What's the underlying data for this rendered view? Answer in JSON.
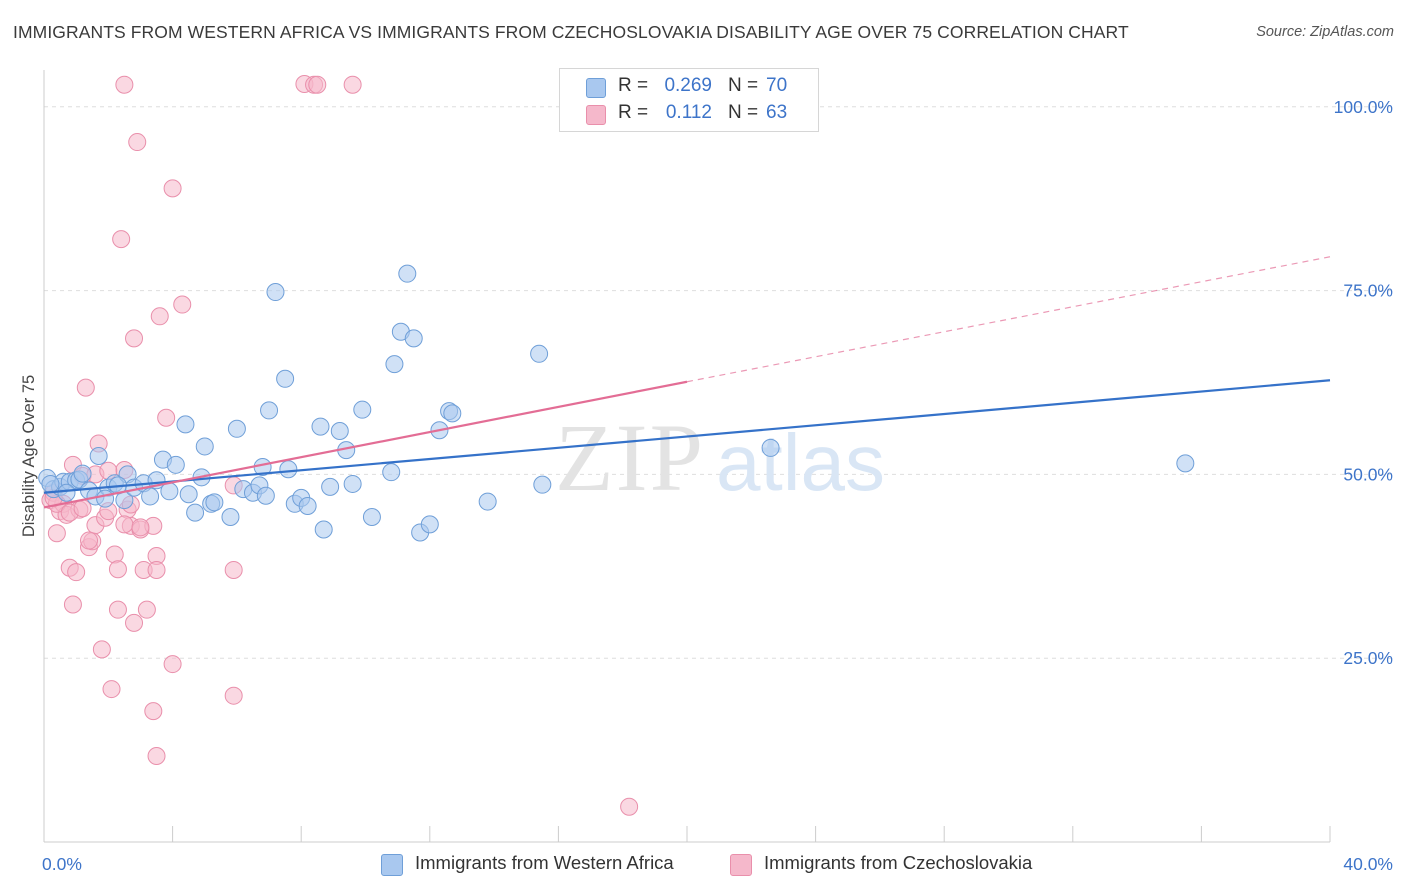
{
  "title": "IMMIGRANTS FROM WESTERN AFRICA VS IMMIGRANTS FROM CZECHOSLOVAKIA DISABILITY AGE OVER 75 CORRELATION CHART",
  "source": "Source: ZipAtlas.com",
  "watermark": {
    "zip": "ZIP",
    "atlas": "atlas"
  },
  "legend": {
    "r_label": "R =",
    "n_label": "N =",
    "rows": [
      {
        "r": "0.269",
        "n": "70",
        "color": "#a9c8ef"
      },
      {
        "r": "0.112",
        "n": "63",
        "color": "#f5b8cb"
      }
    ]
  },
  "colors": {
    "blue_fill": "#a9c8ef",
    "blue_stroke": "#6f9fd8",
    "blue_line": "#3572c9",
    "pink_fill": "#f5b8cb",
    "pink_stroke": "#e98fab",
    "pink_line": "#e36d95",
    "tick_text": "#3d74c9",
    "grid": "#dedede"
  },
  "chart_data": {
    "type": "scatter",
    "title": "IMMIGRANTS FROM WESTERN AFRICA VS IMMIGRANTS FROM CZECHOSLOVAKIA DISABILITY AGE OVER 75 CORRELATION CHART",
    "xlabel": "",
    "ylabel": "Disability Age Over 75",
    "xlim": [
      0,
      40
    ],
    "ylim": [
      0,
      105
    ],
    "x_tick_labels": [
      "0.0%",
      "40.0%"
    ],
    "y_ticks": [
      25,
      50,
      75,
      100
    ],
    "y_tick_labels": [
      "25.0%",
      "50.0%",
      "75.0%",
      "100.0%"
    ],
    "grid": "horizontal dashed",
    "legend_position": "top-center",
    "series": [
      {
        "name": "Immigrants from Western Africa",
        "color": "#a9c8ef",
        "R": 0.269,
        "N": 70,
        "trend": {
          "x": [
            0,
            40
          ],
          "y": [
            47.5,
            62.8
          ],
          "style": "solid"
        },
        "points": [
          [
            0.1,
            49.5
          ],
          [
            0.3,
            48.0
          ],
          [
            0.5,
            48.3
          ],
          [
            0.6,
            49.0
          ],
          [
            0.8,
            49.0
          ],
          [
            1.0,
            49.2
          ],
          [
            1.1,
            49.3
          ],
          [
            1.4,
            47.8
          ],
          [
            1.6,
            47.0
          ],
          [
            1.7,
            52.5
          ],
          [
            2.0,
            48.2
          ],
          [
            2.2,
            48.8
          ],
          [
            2.5,
            46.5
          ],
          [
            2.6,
            50.0
          ],
          [
            2.8,
            48.2
          ],
          [
            3.1,
            48.8
          ],
          [
            3.3,
            47.0
          ],
          [
            3.5,
            49.2
          ],
          [
            3.7,
            52.0
          ],
          [
            3.9,
            47.7
          ],
          [
            4.1,
            51.3
          ],
          [
            4.4,
            56.8
          ],
          [
            4.5,
            47.3
          ],
          [
            4.7,
            44.8
          ],
          [
            5.0,
            53.8
          ],
          [
            5.2,
            46.0
          ],
          [
            5.3,
            46.2
          ],
          [
            5.8,
            44.2
          ],
          [
            6.0,
            56.2
          ],
          [
            6.2,
            48.0
          ],
          [
            6.5,
            47.5
          ],
          [
            6.7,
            48.5
          ],
          [
            6.8,
            51.0
          ],
          [
            7.0,
            58.7
          ],
          [
            7.2,
            74.8
          ],
          [
            7.5,
            63.0
          ],
          [
            7.6,
            50.7
          ],
          [
            7.8,
            46.0
          ],
          [
            8.0,
            46.8
          ],
          [
            8.2,
            45.7
          ],
          [
            8.6,
            56.5
          ],
          [
            8.7,
            42.5
          ],
          [
            8.9,
            48.3
          ],
          [
            9.2,
            55.9
          ],
          [
            9.4,
            53.3
          ],
          [
            9.6,
            48.7
          ],
          [
            9.9,
            58.8
          ],
          [
            10.2,
            44.2
          ],
          [
            10.8,
            50.3
          ],
          [
            10.9,
            65.0
          ],
          [
            11.1,
            69.4
          ],
          [
            11.3,
            77.3
          ],
          [
            11.5,
            68.5
          ],
          [
            11.7,
            42.1
          ],
          [
            12.0,
            43.2
          ],
          [
            12.3,
            56.0
          ],
          [
            12.6,
            58.6
          ],
          [
            12.7,
            58.3
          ],
          [
            13.8,
            46.3
          ],
          [
            15.5,
            48.6
          ],
          [
            15.4,
            66.4
          ],
          [
            22.6,
            53.6
          ],
          [
            35.5,
            51.5
          ],
          [
            0.2,
            48.7
          ],
          [
            0.7,
            47.5
          ],
          [
            1.2,
            50.1
          ],
          [
            2.3,
            48.5
          ],
          [
            4.9,
            49.6
          ],
          [
            6.9,
            47.1
          ],
          [
            1.9,
            46.7
          ]
        ]
      },
      {
        "name": "Immigrants from Czechoslovakia",
        "color": "#f5b8cb",
        "R": 0.112,
        "N": 63,
        "trend": {
          "x": [
            0,
            20,
            40
          ],
          "y": [
            45.5,
            62.6,
            79.6
          ],
          "style": "solid then dashed after x=20"
        },
        "points": [
          [
            0.2,
            46.5
          ],
          [
            0.3,
            47.5
          ],
          [
            0.4,
            42.0
          ],
          [
            0.5,
            45.0
          ],
          [
            0.6,
            46.0
          ],
          [
            0.7,
            44.5
          ],
          [
            0.8,
            37.3
          ],
          [
            0.9,
            51.3
          ],
          [
            0.9,
            32.3
          ],
          [
            1.0,
            36.7
          ],
          [
            1.1,
            45.2
          ],
          [
            1.2,
            49.8
          ],
          [
            1.3,
            61.8
          ],
          [
            1.4,
            40.1
          ],
          [
            1.5,
            40.9
          ],
          [
            1.6,
            43.1
          ],
          [
            1.7,
            54.2
          ],
          [
            1.8,
            26.2
          ],
          [
            1.9,
            44.1
          ],
          [
            2.0,
            45.0
          ],
          [
            2.1,
            20.8
          ],
          [
            2.2,
            39.1
          ],
          [
            2.3,
            37.1
          ],
          [
            2.3,
            31.6
          ],
          [
            2.4,
            82.0
          ],
          [
            2.5,
            50.6
          ],
          [
            2.6,
            45.2
          ],
          [
            2.7,
            43.0
          ],
          [
            2.8,
            68.5
          ],
          [
            2.5,
            103.0
          ],
          [
            2.5,
            43.2
          ],
          [
            2.8,
            29.8
          ],
          [
            2.9,
            95.2
          ],
          [
            3.0,
            42.5
          ],
          [
            3.1,
            37.0
          ],
          [
            3.2,
            31.6
          ],
          [
            3.4,
            17.8
          ],
          [
            3.5,
            38.9
          ],
          [
            3.5,
            37.0
          ],
          [
            3.4,
            43.0
          ],
          [
            3.5,
            11.7
          ],
          [
            3.6,
            71.5
          ],
          [
            3.8,
            57.7
          ],
          [
            4.0,
            88.9
          ],
          [
            4.0,
            24.2
          ],
          [
            4.3,
            73.1
          ],
          [
            5.9,
            48.5
          ],
          [
            5.9,
            37.0
          ],
          [
            5.9,
            19.9
          ],
          [
            8.1,
            103.1
          ],
          [
            8.4,
            103.0
          ],
          [
            8.5,
            103.0
          ],
          [
            9.6,
            103.0
          ],
          [
            18.2,
            4.8
          ],
          [
            0.4,
            46.0
          ],
          [
            0.8,
            44.8
          ],
          [
            1.6,
            50.0
          ],
          [
            2.0,
            50.5
          ],
          [
            1.2,
            45.4
          ],
          [
            0.3,
            46.8
          ],
          [
            3.0,
            42.8
          ],
          [
            1.4,
            41.0
          ],
          [
            2.7,
            45.9
          ]
        ]
      }
    ]
  },
  "bottom_legend": [
    {
      "label": "Immigrants from Western Africa",
      "color": "#a9c8ef"
    },
    {
      "label": "Immigrants from Czechoslovakia",
      "color": "#f5b8cb"
    }
  ]
}
